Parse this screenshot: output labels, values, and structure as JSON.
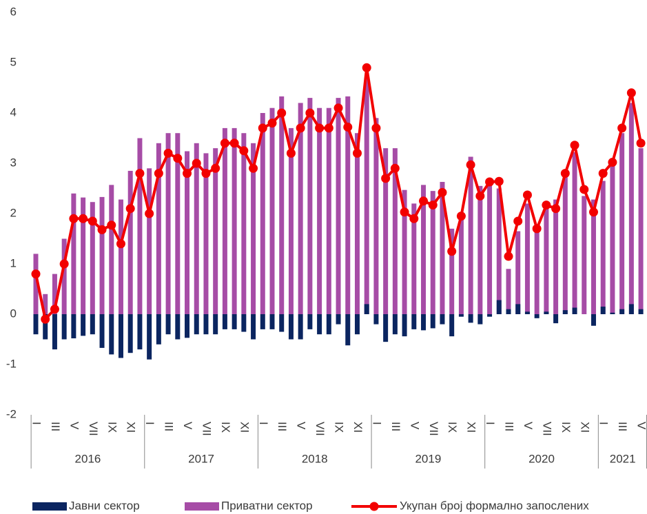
{
  "chart_data": {
    "type": "bar",
    "categories": [
      "I",
      null,
      "III",
      null,
      "V",
      null,
      "VII",
      null,
      "IX",
      null,
      "XI",
      null,
      "I",
      null,
      "III",
      null,
      "V",
      null,
      "VII",
      null,
      "IX",
      null,
      "XI",
      null,
      "I",
      null,
      "III",
      null,
      "V",
      null,
      "VII",
      null,
      "IX",
      null,
      "XI",
      null,
      "I",
      null,
      "III",
      null,
      "V",
      null,
      "VII",
      null,
      "IX",
      null,
      "XI",
      null,
      "I",
      null,
      "III",
      null,
      "V",
      null,
      "VII",
      null,
      "IX",
      null,
      "XI",
      null,
      "I",
      null,
      "III",
      null,
      "V"
    ],
    "groups": [
      "2016",
      "2017",
      "2018",
      "2019",
      "2020",
      "2021"
    ],
    "ylim": [
      -2,
      6
    ],
    "yticks": [
      -2,
      -1,
      0,
      1,
      2,
      3,
      4,
      5,
      6
    ],
    "grid": false,
    "legend": "bottom",
    "series": [
      {
        "name": "Јавни сектор",
        "type": "bar",
        "color": "#0b2560",
        "values": [
          -0.4,
          -0.5,
          -0.7,
          -0.5,
          -0.48,
          -0.43,
          -0.4,
          -0.67,
          -0.8,
          -0.87,
          -0.77,
          -0.7,
          -0.9,
          -0.6,
          -0.4,
          -0.5,
          -0.47,
          -0.4,
          -0.4,
          -0.4,
          -0.3,
          -0.3,
          -0.35,
          -0.5,
          -0.3,
          -0.3,
          -0.35,
          -0.5,
          -0.5,
          -0.3,
          -0.4,
          -0.4,
          -0.2,
          -0.62,
          -0.4,
          0.2,
          -0.2,
          -0.55,
          -0.4,
          -0.44,
          -0.3,
          -0.32,
          -0.28,
          -0.2,
          -0.44,
          -0.05,
          -0.17,
          -0.2,
          -0.05,
          0.28,
          0.1,
          0.2,
          0.05,
          -0.08,
          0.05,
          -0.18,
          0.08,
          0.13,
          0.0,
          -0.23,
          0.15,
          0.03,
          0.1,
          0.2,
          0.1
        ]
      },
      {
        "name": "Приватни сектор",
        "type": "bar",
        "color": "#a64ca6",
        "values": [
          1.2,
          0.4,
          0.8,
          1.5,
          2.4,
          2.32,
          2.23,
          2.33,
          2.57,
          2.28,
          2.85,
          3.5,
          2.9,
          3.4,
          3.6,
          3.6,
          3.24,
          3.4,
          3.2,
          3.3,
          3.7,
          3.7,
          3.6,
          3.4,
          4.0,
          4.1,
          4.33,
          3.7,
          4.2,
          4.3,
          4.1,
          4.1,
          4.3,
          4.33,
          3.6,
          4.7,
          3.9,
          3.3,
          3.3,
          2.47,
          2.2,
          2.57,
          2.45,
          2.63,
          1.7,
          2.0,
          3.13,
          2.55,
          2.68,
          2.5,
          0.9,
          1.65,
          2.2,
          1.78,
          2.12,
          2.28,
          2.72,
          3.22,
          2.35,
          2.28,
          2.65,
          3.0,
          3.6,
          4.2,
          3.3
        ]
      },
      {
        "name": "Укупан број формално запослених",
        "type": "line",
        "color": "#f20000",
        "values": [
          0.8,
          -0.1,
          0.1,
          1.0,
          1.9,
          1.9,
          1.85,
          1.68,
          1.77,
          1.4,
          2.1,
          2.8,
          2.0,
          2.8,
          3.2,
          3.1,
          2.8,
          3.0,
          2.8,
          2.9,
          3.4,
          3.4,
          3.25,
          2.9,
          3.7,
          3.8,
          4.0,
          3.2,
          3.7,
          4.0,
          3.7,
          3.7,
          4.1,
          3.72,
          3.2,
          4.9,
          3.7,
          2.7,
          2.9,
          2.03,
          1.9,
          2.25,
          2.17,
          2.42,
          1.25,
          1.95,
          2.97,
          2.35,
          2.63,
          2.64,
          1.15,
          1.85,
          2.37,
          1.7,
          2.17,
          2.1,
          2.8,
          3.36,
          2.48,
          2.03,
          2.8,
          3.02,
          3.7,
          4.4,
          3.4
        ]
      }
    ]
  }
}
